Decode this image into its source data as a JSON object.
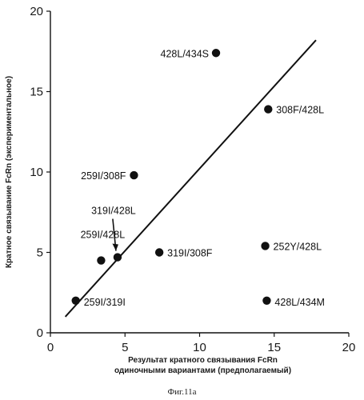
{
  "chart_data": {
    "type": "scatter",
    "xlabel_lines": [
      "Результат кратного связывания FcRn",
      "одиночными вариантами (предполагаемый)"
    ],
    "ylabel": "Кратное связывание FcRn (экспериментальное)",
    "xlim": [
      0,
      20
    ],
    "ylim": [
      0,
      20
    ],
    "xticks": [
      0,
      5,
      10,
      15,
      20
    ],
    "yticks": [
      0,
      5,
      10,
      15,
      20
    ],
    "grid": false,
    "points": [
      {
        "label": "428L/434S",
        "x": 11.1,
        "y": 17.4
      },
      {
        "label": "308F/428L",
        "x": 14.6,
        "y": 13.9
      },
      {
        "label": "259I/308F",
        "x": 5.6,
        "y": 9.8
      },
      {
        "label": "319I/428L",
        "x": 4.5,
        "y": 4.7
      },
      {
        "label": "259I/428L",
        "x": 3.4,
        "y": 4.5
      },
      {
        "label": "319I/308F",
        "x": 7.3,
        "y": 5.0
      },
      {
        "label": "252Y/428L",
        "x": 14.4,
        "y": 5.4
      },
      {
        "label": "259I/319I",
        "x": 1.7,
        "y": 2.0
      },
      {
        "label": "428L/434M",
        "x": 14.5,
        "y": 2.0
      }
    ],
    "fit_line": {
      "x": [
        1.0,
        17.8
      ],
      "y": [
        1.0,
        18.2
      ]
    }
  },
  "caption": "Фиг.11a"
}
